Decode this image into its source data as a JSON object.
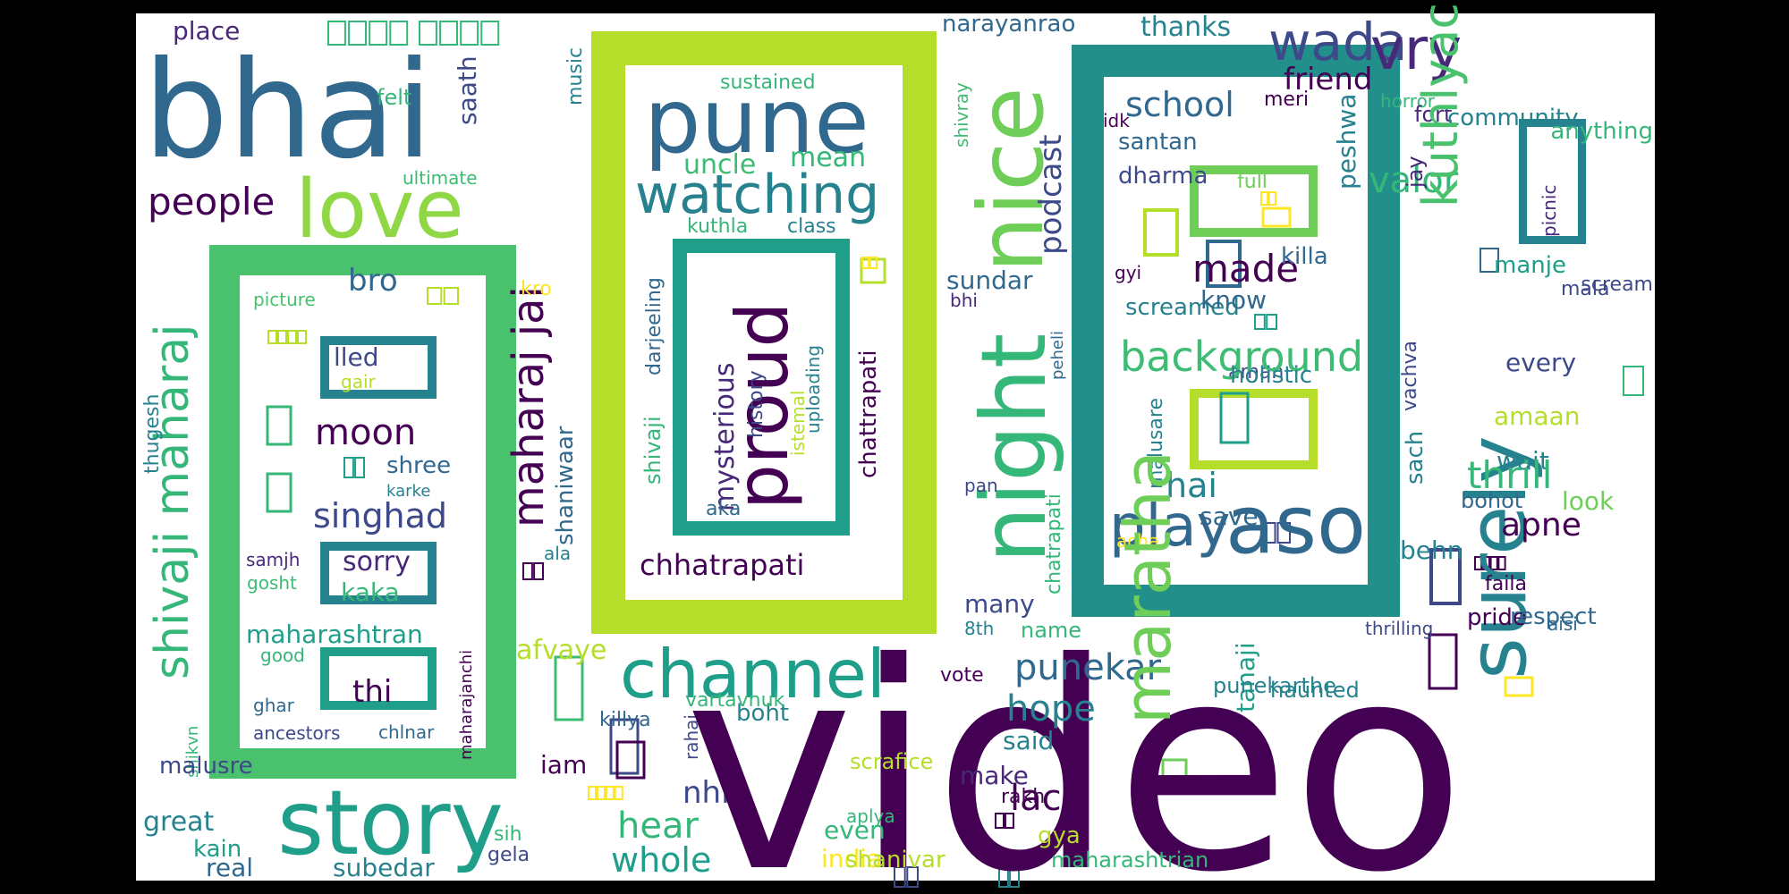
{
  "canvas": {
    "background": "#000000",
    "panel_color": "#ffffff"
  },
  "palette": {
    "dark_purple": "#440154",
    "indigo": "#482878",
    "blue": "#3e4989",
    "steel": "#31688e",
    "teal": "#26828e",
    "sea": "#1f9e89",
    "green": "#35b779",
    "light_green": "#6ece58",
    "lime": "#b5de2b",
    "yellow": "#fde725"
  },
  "words": [
    {
      "text": "bhai",
      "color": "#31688e"
    },
    {
      "text": "love",
      "color": "#8fd744"
    },
    {
      "text": "people",
      "color": "#440154"
    },
    {
      "text": "place",
      "color": "#482878"
    },
    {
      "text": "felt",
      "color": "#35b779"
    },
    {
      "text": "music",
      "color": "#26828e"
    },
    {
      "text": "ultimate",
      "color": "#3dbc74"
    },
    {
      "text": "saath",
      "color": "#3e4989"
    },
    {
      "text": "shivaji maharaj",
      "color": "#35b779"
    },
    {
      "text": "bro",
      "color": "#31688e"
    },
    {
      "text": "picture",
      "color": "#4ac16d"
    },
    {
      "text": "lled",
      "color": "#3e4989"
    },
    {
      "text": "gair",
      "color": "#b5de2b"
    },
    {
      "text": "moon",
      "color": "#440154"
    },
    {
      "text": "shree",
      "color": "#31688e"
    },
    {
      "text": "singhad",
      "color": "#3e4989"
    },
    {
      "text": "karke",
      "color": "#26828e"
    },
    {
      "text": "samjh",
      "color": "#482878"
    },
    {
      "text": "sorry",
      "color": "#482878"
    },
    {
      "text": "kaka",
      "color": "#35b779"
    },
    {
      "text": "gosht",
      "color": "#3dbc74"
    },
    {
      "text": "maharashtran",
      "color": "#1f9e89"
    },
    {
      "text": "good",
      "color": "#35b779"
    },
    {
      "text": "thi",
      "color": "#440154"
    },
    {
      "text": "ghar",
      "color": "#31688e"
    },
    {
      "text": "ancestors",
      "color": "#3e4989"
    },
    {
      "text": "chlnar",
      "color": "#31688e"
    },
    {
      "text": "maharajanchi",
      "color": "#440154"
    },
    {
      "text": "thugesh",
      "color": "#26828e"
    },
    {
      "text": "shikvn",
      "color": "#35b779"
    },
    {
      "text": "malusre",
      "color": "#3e4989"
    },
    {
      "text": "great",
      "color": "#26828e"
    },
    {
      "text": "kain",
      "color": "#1f9e89"
    },
    {
      "text": "real",
      "color": "#31688e"
    },
    {
      "text": "story",
      "color": "#1f9e89"
    },
    {
      "text": "subedar",
      "color": "#26828e"
    },
    {
      "text": "sih",
      "color": "#35b779"
    },
    {
      "text": "gela",
      "color": "#3e4989"
    },
    {
      "text": "maharaj jai",
      "color": "#440154"
    },
    {
      "text": "shaniwaar",
      "color": "#31688e"
    },
    {
      "text": "kro",
      "color": "#fde725"
    },
    {
      "text": "ala",
      "color": "#26828e"
    },
    {
      "text": "afvaye",
      "color": "#b5de2b"
    },
    {
      "text": "pune",
      "color": "#31688e"
    },
    {
      "text": "sustained",
      "color": "#35b779"
    },
    {
      "text": "watching",
      "color": "#26828e"
    },
    {
      "text": "uncle",
      "color": "#3dbc74"
    },
    {
      "text": "mean",
      "color": "#35b779"
    },
    {
      "text": "kuthla",
      "color": "#35b779"
    },
    {
      "text": "class",
      "color": "#26828e"
    },
    {
      "text": "proud",
      "color": "#440154"
    },
    {
      "text": "mysterious",
      "color": "#482878"
    },
    {
      "text": "history",
      "color": "#3e4989"
    },
    {
      "text": "uploading",
      "color": "#26828e"
    },
    {
      "text": "istemal",
      "color": "#b5de2b"
    },
    {
      "text": "shivaji",
      "color": "#35b779"
    },
    {
      "text": "darjeeling",
      "color": "#31688e"
    },
    {
      "text": "aka",
      "color": "#31688e"
    },
    {
      "text": "chattrapati",
      "color": "#440154"
    },
    {
      "text": "chhatrapati",
      "color": "#440154"
    },
    {
      "text": "channel",
      "color": "#1f9e89"
    },
    {
      "text": "hear",
      "color": "#35b779"
    },
    {
      "text": "nhi",
      "color": "#3e4989"
    },
    {
      "text": "whole",
      "color": "#1f9e89"
    },
    {
      "text": "boht",
      "color": "#26828e"
    },
    {
      "text": "killya",
      "color": "#31688e"
    },
    {
      "text": "rahai",
      "color": "#3e4989"
    },
    {
      "text": "iam",
      "color": "#440154"
    },
    {
      "text": "vartavnuk",
      "color": "#35b779"
    },
    {
      "text": "video",
      "color": "#440154"
    },
    {
      "text": "night",
      "color": "#35b779"
    },
    {
      "text": "nice",
      "color": "#6ece58"
    },
    {
      "text": "narayanrao",
      "color": "#31688e"
    },
    {
      "text": "podcast",
      "color": "#3e4989"
    },
    {
      "text": "sundar",
      "color": "#31688e"
    },
    {
      "text": "bhi",
      "color": "#482878"
    },
    {
      "text": "peheli",
      "color": "#31688e"
    },
    {
      "text": "shivray",
      "color": "#3dbc74"
    },
    {
      "text": "pan",
      "color": "#3e4989"
    },
    {
      "text": "chatrapati",
      "color": "#35b779"
    },
    {
      "text": "many",
      "color": "#3e4989"
    },
    {
      "text": "8th",
      "color": "#26828e"
    },
    {
      "text": "name",
      "color": "#35b779"
    },
    {
      "text": "punekar",
      "color": "#31688e"
    },
    {
      "text": "hope",
      "color": "#26828e"
    },
    {
      "text": "said",
      "color": "#26828e"
    },
    {
      "text": "lac",
      "color": "#440154"
    },
    {
      "text": "make",
      "color": "#482878"
    },
    {
      "text": "scrafice",
      "color": "#b5de2b"
    },
    {
      "text": "india",
      "color": "#fde725"
    },
    {
      "text": "vote",
      "color": "#440154"
    },
    {
      "text": "even",
      "color": "#35b779"
    },
    {
      "text": "shanivar",
      "color": "#b5de2b"
    },
    {
      "text": "aplya",
      "color": "#35b779"
    },
    {
      "text": "rakh",
      "color": "#440154"
    },
    {
      "text": "gya",
      "color": "#b5de2b"
    },
    {
      "text": "maharashtrian",
      "color": "#35b779"
    },
    {
      "text": "thanks",
      "color": "#26828e"
    },
    {
      "text": "school",
      "color": "#31688e"
    },
    {
      "text": "meri",
      "color": "#440154"
    },
    {
      "text": "santan",
      "color": "#31688e"
    },
    {
      "text": "idk",
      "color": "#440154"
    },
    {
      "text": "dharma",
      "color": "#3e4989"
    },
    {
      "text": "full",
      "color": "#6ece58"
    },
    {
      "text": "made",
      "color": "#440154"
    },
    {
      "text": "killa",
      "color": "#31688e"
    },
    {
      "text": "gyi",
      "color": "#440154"
    },
    {
      "text": "screamed",
      "color": "#26828e"
    },
    {
      "text": "know",
      "color": "#31688e"
    },
    {
      "text": "aman",
      "color": "#3e4989"
    },
    {
      "text": "background",
      "color": "#3dbc74"
    },
    {
      "text": "holistic",
      "color": "#26828e"
    },
    {
      "text": "malusare",
      "color": "#26828e"
    },
    {
      "text": "hai",
      "color": "#26828e"
    },
    {
      "text": "play",
      "color": "#31688e"
    },
    {
      "text": "acha",
      "color": "#fde725"
    },
    {
      "text": "save",
      "color": "#31688e"
    },
    {
      "text": "tanaji",
      "color": "#1f9e89"
    },
    {
      "text": "punekarthe",
      "color": "#26828e"
    },
    {
      "text": "haunted",
      "color": "#26828e"
    },
    {
      "text": "aso",
      "color": "#31688e"
    },
    {
      "text": "maratha",
      "color": "#6ece58"
    },
    {
      "text": "peshwa",
      "color": "#26828e"
    },
    {
      "text": "wada",
      "color": "#3e4989"
    },
    {
      "text": "friend",
      "color": "#440154"
    },
    {
      "text": "valor",
      "color": "#35b779"
    },
    {
      "text": "vry",
      "color": "#482878"
    },
    {
      "text": "horror",
      "color": "#35b779"
    },
    {
      "text": "fort",
      "color": "#482878"
    },
    {
      "text": "community",
      "color": "#26828e"
    },
    {
      "text": "anything",
      "color": "#35b779"
    },
    {
      "text": "kuthlyach",
      "color": "#4ac16d"
    },
    {
      "text": "surely",
      "color": "#26828e"
    },
    {
      "text": "jay",
      "color": "#482878"
    },
    {
      "text": "picnic",
      "color": "#482878"
    },
    {
      "text": "manje",
      "color": "#1f9e89"
    },
    {
      "text": "scream",
      "color": "#3e4989"
    },
    {
      "text": "mala",
      "color": "#3e4989"
    },
    {
      "text": "vachva",
      "color": "#3e4989"
    },
    {
      "text": "every",
      "color": "#3e4989"
    },
    {
      "text": "amaan",
      "color": "#b5de2b"
    },
    {
      "text": "sach",
      "color": "#26828e"
    },
    {
      "text": "wait",
      "color": "#26828e"
    },
    {
      "text": "thrill",
      "color": "#35b779"
    },
    {
      "text": "apne",
      "color": "#440154"
    },
    {
      "text": "bohot",
      "color": "#31688e"
    },
    {
      "text": "look",
      "color": "#6ece58"
    },
    {
      "text": "thrilling",
      "color": "#3e4989"
    },
    {
      "text": "aisi",
      "color": "#31688e"
    },
    {
      "text": "pride",
      "color": "#440154"
    },
    {
      "text": "behn",
      "color": "#26828e"
    },
    {
      "text": "faila",
      "color": "#440154"
    },
    {
      "text": "respect",
      "color": "#31688e"
    },
    {
      "text": "say",
      "color": "#35b779"
    }
  ],
  "glyph_boxes": [
    {
      "color": "#35b779"
    },
    {
      "color": "#35b779"
    },
    {
      "color": "#b5de2b"
    },
    {
      "color": "#3e4989"
    },
    {
      "color": "#1f9e89"
    },
    {
      "color": "#31688e"
    },
    {
      "color": "#b5de2b"
    },
    {
      "color": "#fde725"
    },
    {
      "color": "#6ece58"
    },
    {
      "color": "#3e4989"
    },
    {
      "color": "#440154"
    },
    {
      "color": "#fde725"
    },
    {
      "color": "#3dbc74"
    },
    {
      "color": "#440154"
    },
    {
      "color": "#35b779"
    },
    {
      "color": "#31688e"
    }
  ]
}
